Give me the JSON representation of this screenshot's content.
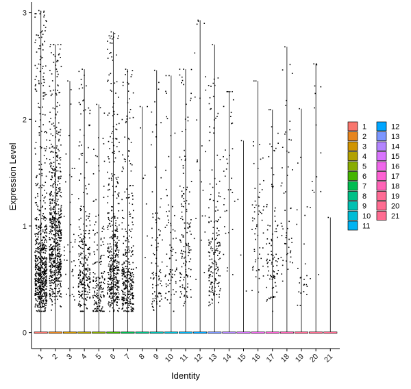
{
  "chart_data": {
    "type": "violin",
    "xlabel": "Identity",
    "ylabel": "Expression Level",
    "ylim": [
      -0.15,
      3.1
    ],
    "yticks": [
      0,
      1,
      2,
      3
    ],
    "categories": [
      "1",
      "2",
      "3",
      "4",
      "5",
      "6",
      "7",
      "8",
      "9",
      "10",
      "11",
      "12",
      "13",
      "14",
      "15",
      "16",
      "17",
      "18",
      "19",
      "20",
      "21"
    ],
    "series": [
      {
        "category": "1",
        "color": "#F8766D",
        "max": 3.02,
        "nonzero": 700,
        "median": 0.55
      },
      {
        "category": "2",
        "color": "#E7851E",
        "max": 2.7,
        "nonzero": 650,
        "median": 0.9
      },
      {
        "category": "3",
        "color": "#D09400",
        "max": 2.36,
        "nonzero": 40,
        "median": 0.7
      },
      {
        "category": "4",
        "color": "#B2A100",
        "max": 2.47,
        "nonzero": 260,
        "median": 0.5
      },
      {
        "category": "5",
        "color": "#89AC00",
        "max": 2.14,
        "nonzero": 160,
        "median": 0.4
      },
      {
        "category": "6",
        "color": "#45B500",
        "max": 2.82,
        "nonzero": 420,
        "median": 0.6
      },
      {
        "category": "7",
        "color": "#00BC51",
        "max": 2.47,
        "nonzero": 330,
        "median": 0.45
      },
      {
        "category": "8",
        "color": "#00C087",
        "max": 2.12,
        "nonzero": 8,
        "median": 1.5
      },
      {
        "category": "9",
        "color": "#00C0B2",
        "max": 2.46,
        "nonzero": 90,
        "median": 0.5
      },
      {
        "category": "10",
        "color": "#00BCD6",
        "max": 2.41,
        "nonzero": 75,
        "median": 0.6
      },
      {
        "category": "11",
        "color": "#00B3F2",
        "max": 2.47,
        "nonzero": 140,
        "median": 0.8
      },
      {
        "category": "12",
        "color": "#00A6FF",
        "max": 2.93,
        "nonzero": 25,
        "median": 1.5
      },
      {
        "category": "13",
        "color": "#7C96FF",
        "max": 2.7,
        "nonzero": 170,
        "median": 0.7
      },
      {
        "category": "14",
        "color": "#B385FF",
        "max": 2.26,
        "nonzero": 35,
        "median": 1.4
      },
      {
        "category": "15",
        "color": "#D874FD",
        "max": 1.8,
        "nonzero": 3,
        "median": 1.0
      },
      {
        "category": "16",
        "color": "#EF67EB",
        "max": 2.36,
        "nonzero": 60,
        "median": 1.0
      },
      {
        "category": "17",
        "color": "#FD61D3",
        "max": 2.09,
        "nonzero": 95,
        "median": 0.6
      },
      {
        "category": "18",
        "color": "#FF63B6",
        "max": 2.68,
        "nonzero": 55,
        "median": 1.0
      },
      {
        "category": "19",
        "color": "#FF6B94",
        "max": 2.1,
        "nonzero": 25,
        "median": 0.4
      },
      {
        "category": "20",
        "color": "#FF6C91",
        "max": 2.52,
        "nonzero": 16,
        "median": 1.5
      },
      {
        "category": "21",
        "color": "#FF6C91",
        "max": 1.08,
        "nonzero": 0,
        "median": 0
      }
    ],
    "legend": {
      "position": "right",
      "columns": 2,
      "entries": [
        {
          "label": "1",
          "color": "#F8766D"
        },
        {
          "label": "2",
          "color": "#E7851E"
        },
        {
          "label": "3",
          "color": "#D09400"
        },
        {
          "label": "4",
          "color": "#B2A100"
        },
        {
          "label": "5",
          "color": "#89AC00"
        },
        {
          "label": "6",
          "color": "#45B500"
        },
        {
          "label": "7",
          "color": "#00BC51"
        },
        {
          "label": "8",
          "color": "#00C087"
        },
        {
          "label": "9",
          "color": "#00C0B2"
        },
        {
          "label": "10",
          "color": "#00BCD6"
        },
        {
          "label": "11",
          "color": "#00B3F2"
        },
        {
          "label": "12",
          "color": "#00A6FF"
        },
        {
          "label": "13",
          "color": "#7C96FF"
        },
        {
          "label": "14",
          "color": "#B385FF"
        },
        {
          "label": "15",
          "color": "#D874FD"
        },
        {
          "label": "16",
          "color": "#EF67EB"
        },
        {
          "label": "17",
          "color": "#FD61D3"
        },
        {
          "label": "18",
          "color": "#FF63B6"
        },
        {
          "label": "19",
          "color": "#FF6B94"
        },
        {
          "label": "20",
          "color": "#FF6C91"
        },
        {
          "label": "21",
          "color": "#FF6C91"
        }
      ]
    }
  }
}
